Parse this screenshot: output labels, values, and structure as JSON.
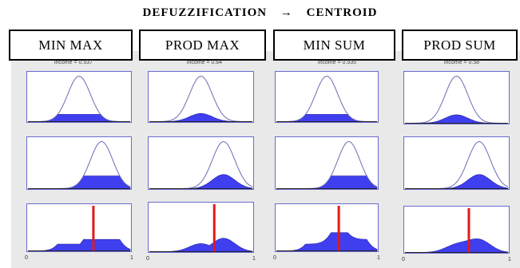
{
  "header": {
    "left": "DEFUZZIFICATION",
    "arrow": "→",
    "right": "CENTROID"
  },
  "methods": [
    {
      "label": "MIN MAX",
      "caption": "income = 0.537"
    },
    {
      "label": "PROD MAX",
      "caption": "income = 0.64"
    },
    {
      "label": "MIN  SUM",
      "caption": "income = 0.535"
    },
    {
      "label": "PROD  SUM",
      "caption": "income = 0.58"
    }
  ],
  "axis": {
    "min_label": "0",
    "max_label": "1"
  },
  "colors": {
    "curve": "#6b6bb5",
    "fill": "#3f3ff0",
    "border": "#6a6ad0",
    "centroid": "#e01a1a"
  }
}
